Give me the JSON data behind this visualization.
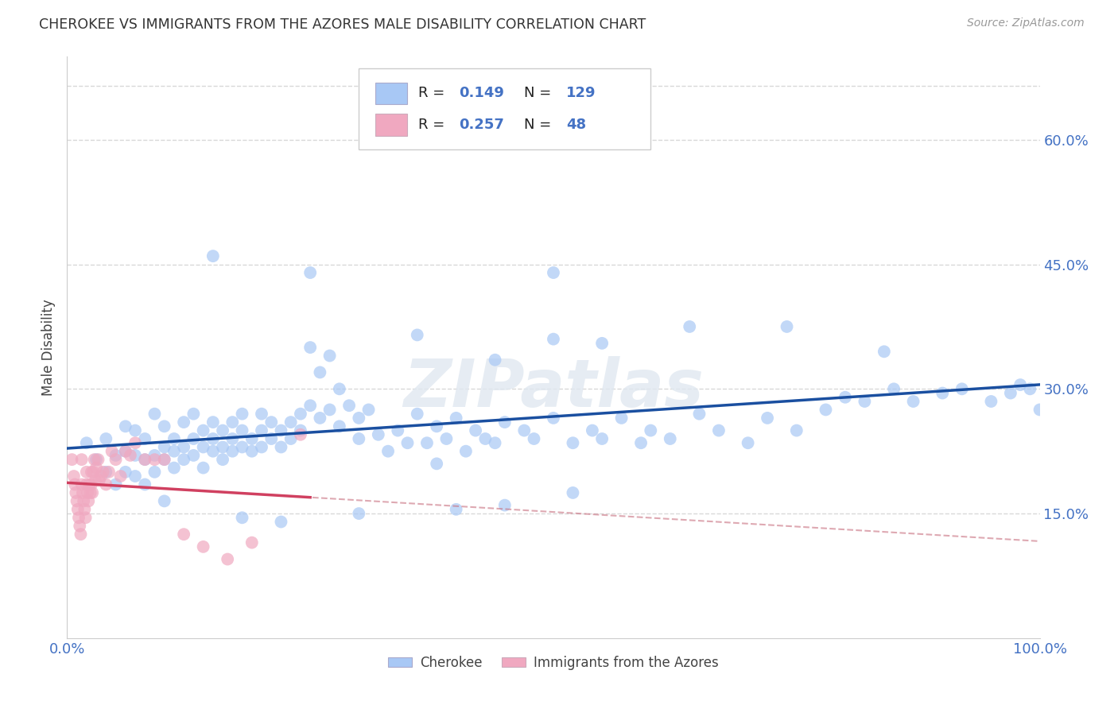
{
  "title": "CHEROKEE VS IMMIGRANTS FROM THE AZORES MALE DISABILITY CORRELATION CHART",
  "source": "Source: ZipAtlas.com",
  "ylabel": "Male Disability",
  "watermark": "ZIPatlas",
  "legend_label1": "Cherokee",
  "legend_label2": "Immigrants from the Azores",
  "R1": 0.149,
  "N1": 129,
  "R2": 0.257,
  "N2": 48,
  "xlim": [
    0,
    1.0
  ],
  "ylim": [
    0,
    0.7
  ],
  "color_blue": "#a8c8f5",
  "color_pink": "#f0a8c0",
  "line_blue": "#1a4fa0",
  "line_pink": "#d04060",
  "line_dashed_color": "#c87080",
  "background": "#ffffff",
  "grid_color": "#d8d8d8",
  "tick_color": "#4472c4",
  "cherokee_x": [
    0.02,
    0.03,
    0.04,
    0.04,
    0.05,
    0.05,
    0.06,
    0.06,
    0.06,
    0.07,
    0.07,
    0.07,
    0.08,
    0.08,
    0.08,
    0.09,
    0.09,
    0.09,
    0.1,
    0.1,
    0.1,
    0.11,
    0.11,
    0.11,
    0.12,
    0.12,
    0.12,
    0.13,
    0.13,
    0.13,
    0.14,
    0.14,
    0.14,
    0.15,
    0.15,
    0.15,
    0.16,
    0.16,
    0.16,
    0.17,
    0.17,
    0.17,
    0.18,
    0.18,
    0.18,
    0.19,
    0.19,
    0.2,
    0.2,
    0.2,
    0.21,
    0.21,
    0.22,
    0.22,
    0.23,
    0.23,
    0.24,
    0.24,
    0.25,
    0.25,
    0.26,
    0.26,
    0.27,
    0.27,
    0.28,
    0.28,
    0.29,
    0.3,
    0.3,
    0.31,
    0.32,
    0.33,
    0.34,
    0.35,
    0.36,
    0.37,
    0.38,
    0.39,
    0.4,
    0.41,
    0.42,
    0.43,
    0.44,
    0.45,
    0.47,
    0.48,
    0.5,
    0.52,
    0.54,
    0.55,
    0.57,
    0.59,
    0.6,
    0.62,
    0.65,
    0.67,
    0.7,
    0.72,
    0.75,
    0.78,
    0.8,
    0.82,
    0.85,
    0.87,
    0.9,
    0.92,
    0.95,
    0.97,
    0.98,
    0.99,
    1.0,
    0.15,
    0.25,
    0.36,
    0.44,
    0.5,
    0.55,
    0.64,
    0.74,
    0.84,
    0.5,
    0.38,
    0.1,
    0.18,
    0.22,
    0.3,
    0.4,
    0.45,
    0.52
  ],
  "cherokee_y": [
    0.235,
    0.215,
    0.24,
    0.2,
    0.22,
    0.185,
    0.2,
    0.225,
    0.255,
    0.22,
    0.195,
    0.25,
    0.215,
    0.24,
    0.185,
    0.22,
    0.2,
    0.27,
    0.23,
    0.215,
    0.255,
    0.225,
    0.24,
    0.205,
    0.23,
    0.26,
    0.215,
    0.24,
    0.22,
    0.27,
    0.23,
    0.25,
    0.205,
    0.24,
    0.225,
    0.26,
    0.23,
    0.25,
    0.215,
    0.24,
    0.26,
    0.225,
    0.25,
    0.23,
    0.27,
    0.24,
    0.225,
    0.25,
    0.23,
    0.27,
    0.24,
    0.26,
    0.25,
    0.23,
    0.26,
    0.24,
    0.27,
    0.25,
    0.35,
    0.28,
    0.32,
    0.265,
    0.34,
    0.275,
    0.3,
    0.255,
    0.28,
    0.24,
    0.265,
    0.275,
    0.245,
    0.225,
    0.25,
    0.235,
    0.27,
    0.235,
    0.255,
    0.24,
    0.265,
    0.225,
    0.25,
    0.24,
    0.235,
    0.26,
    0.25,
    0.24,
    0.265,
    0.235,
    0.25,
    0.24,
    0.265,
    0.235,
    0.25,
    0.24,
    0.27,
    0.25,
    0.235,
    0.265,
    0.25,
    0.275,
    0.29,
    0.285,
    0.3,
    0.285,
    0.295,
    0.3,
    0.285,
    0.295,
    0.305,
    0.3,
    0.275,
    0.46,
    0.44,
    0.365,
    0.335,
    0.36,
    0.355,
    0.375,
    0.375,
    0.345,
    0.44,
    0.21,
    0.165,
    0.145,
    0.14,
    0.15,
    0.155,
    0.16,
    0.175
  ],
  "azores_x": [
    0.005,
    0.007,
    0.008,
    0.009,
    0.01,
    0.011,
    0.012,
    0.013,
    0.014,
    0.015,
    0.015,
    0.016,
    0.017,
    0.018,
    0.019,
    0.02,
    0.02,
    0.021,
    0.022,
    0.023,
    0.024,
    0.025,
    0.025,
    0.026,
    0.027,
    0.028,
    0.029,
    0.03,
    0.032,
    0.033,
    0.035,
    0.037,
    0.04,
    0.043,
    0.046,
    0.05,
    0.055,
    0.06,
    0.065,
    0.07,
    0.08,
    0.09,
    0.1,
    0.12,
    0.14,
    0.165,
    0.19,
    0.24
  ],
  "azores_y": [
    0.215,
    0.195,
    0.185,
    0.175,
    0.165,
    0.155,
    0.145,
    0.135,
    0.125,
    0.215,
    0.185,
    0.175,
    0.165,
    0.155,
    0.145,
    0.2,
    0.185,
    0.175,
    0.165,
    0.185,
    0.175,
    0.2,
    0.185,
    0.175,
    0.2,
    0.215,
    0.19,
    0.205,
    0.215,
    0.19,
    0.195,
    0.2,
    0.185,
    0.2,
    0.225,
    0.215,
    0.195,
    0.225,
    0.22,
    0.235,
    0.215,
    0.215,
    0.215,
    0.125,
    0.11,
    0.095,
    0.115,
    0.245
  ]
}
